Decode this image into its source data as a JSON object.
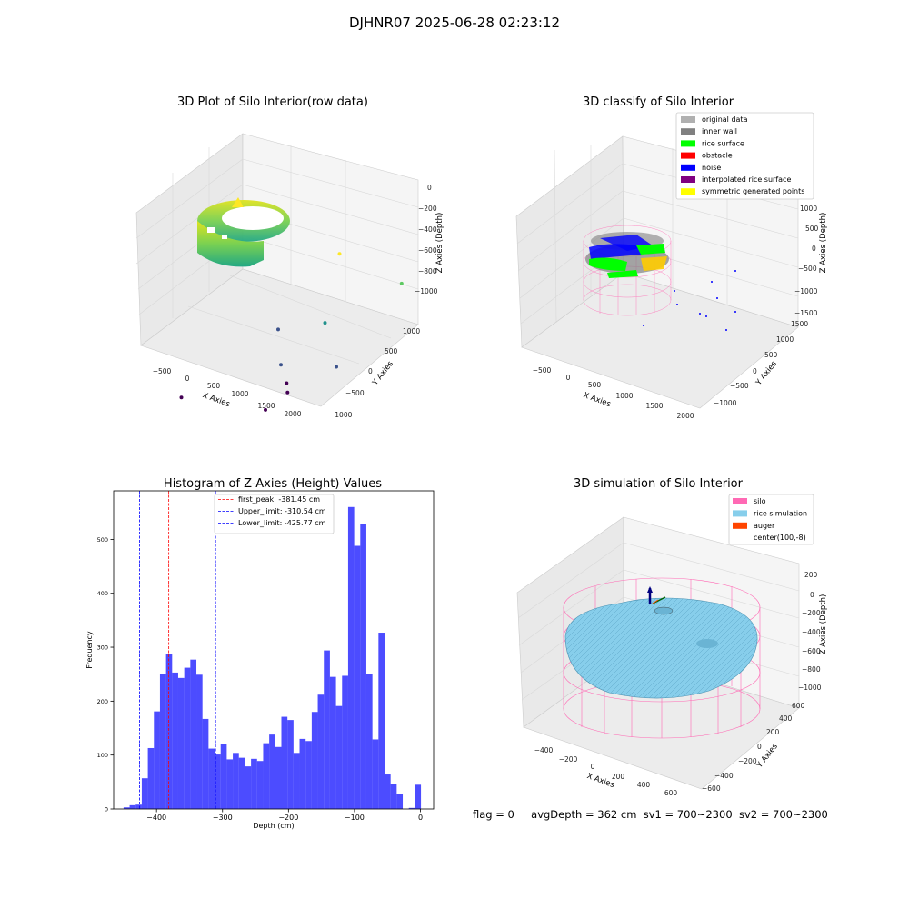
{
  "figure": {
    "title": "DJHNR07 2025-06-28 02:23:12",
    "footer": {
      "flag": "flag = 0",
      "avg_depth": "avgDepth = 362 cm",
      "sv1": "sv1 = 700~2300",
      "sv2": "sv2 = 700~2300"
    }
  },
  "chart_data": [
    {
      "type": "scatter",
      "title": "3D Plot of Silo Interior(row data)",
      "xlabel": "X Axies",
      "ylabel": "Y Axies",
      "zlabel": "Z Axies (Depth)",
      "xticks": [
        "−500",
        "0",
        "500",
        "1000",
        "1500",
        "2000"
      ],
      "yticks": [
        "−1000",
        "−500",
        "0",
        "500",
        "1000"
      ],
      "zticks": [
        "0",
        "−200",
        "−400",
        "−600",
        "−800",
        "−1000"
      ],
      "colormap": "viridis",
      "description_points": "dense ring of points near depth -100 to -400 plus sparse outliers",
      "outliers": [
        {
          "x": 900,
          "y": 800,
          "z": -700
        },
        {
          "x": 1550,
          "y": 800,
          "z": -750
        },
        {
          "x": 1200,
          "y": 300,
          "z": -900
        },
        {
          "x": 800,
          "y": 200,
          "z": -1000
        },
        {
          "x": 1100,
          "y": -100,
          "z": -1050
        },
        {
          "x": 1500,
          "y": 100,
          "z": -1050
        },
        {
          "x": 1250,
          "y": -200,
          "z": -1100
        },
        {
          "x": 1350,
          "y": -300,
          "z": -1100
        },
        {
          "x": 1300,
          "y": -500,
          "z": -1150
        },
        {
          "x": 600,
          "y": -700,
          "z": -1150
        }
      ]
    },
    {
      "type": "scatter",
      "title": "3D classify of Silo Interior",
      "xlabel": "X Axies",
      "ylabel": "Y Axies",
      "zlabel": "Z Axies (Depth)",
      "xticks": [
        "−500",
        "0",
        "500",
        "1000",
        "1500",
        "2000"
      ],
      "yticks": [
        "−1000",
        "−500",
        "0",
        "500",
        "1000",
        "1500"
      ],
      "zticks": [
        "1000",
        "500",
        "0",
        "−500",
        "−1000",
        "−1500"
      ],
      "legend_position": "upper right",
      "legend": [
        {
          "label": "original data",
          "color": "#b0b0b0"
        },
        {
          "label": "inner wall",
          "color": "#808080"
        },
        {
          "label": "rice surface",
          "color": "#00ff00"
        },
        {
          "label": "obstacle",
          "color": "#ff0000"
        },
        {
          "label": "noise",
          "color": "#0000ff"
        },
        {
          "label": "interpolated rice surface",
          "color": "#800080"
        },
        {
          "label": "symmetric generated points",
          "color": "#ffff00"
        }
      ]
    },
    {
      "type": "bar",
      "title": "Histogram of Z-Axies (Height) Values",
      "xlabel": "Depth (cm)",
      "ylabel": "Frequency",
      "xlim": [
        -465,
        20
      ],
      "ylim": [
        0,
        590
      ],
      "xticks": [
        -400,
        -300,
        -200,
        -100,
        0
      ],
      "xtick_labels": [
        "−400",
        "−300",
        "−200",
        "−100",
        "0"
      ],
      "yticks": [
        0,
        100,
        200,
        300,
        400,
        500
      ],
      "bar_color": "#0000ff",
      "bin_width": 9.2,
      "bins_start": -450,
      "values": [
        3,
        7,
        8,
        57,
        113,
        181,
        250,
        287,
        253,
        243,
        262,
        277,
        249,
        167,
        112,
        101,
        120,
        92,
        104,
        95,
        79,
        93,
        89,
        122,
        138,
        115,
        171,
        165,
        104,
        130,
        126,
        180,
        212,
        294,
        245,
        191,
        247,
        560,
        488,
        529,
        250,
        129,
        327,
        64,
        46,
        28,
        0,
        2,
        45
      ],
      "lines": [
        {
          "label": "first_peak: -381.45 cm",
          "value": -381.45,
          "color": "#ff0000"
        },
        {
          "label": "Upper_limit: -310.54 cm",
          "value": -310.54,
          "color": "#0000ff"
        },
        {
          "label": "Lower_limit: -425.77 cm",
          "value": -425.77,
          "color": "#0000ff"
        }
      ],
      "legend_position": "upper center"
    },
    {
      "type": "area",
      "title": "3D simulation of Silo Interior",
      "xlabel": "X Axies",
      "ylabel": "Y Axies",
      "zlabel": "Z Axies (Depth)",
      "xticks": [
        "−400",
        "−200",
        "0",
        "200",
        "400",
        "600"
      ],
      "yticks": [
        "−600",
        "−400",
        "−200",
        "0",
        "200",
        "400",
        "600"
      ],
      "zticks": [
        "200",
        "0",
        "−200",
        "−400",
        "−600",
        "−800",
        "−1000"
      ],
      "legend_position": "upper right",
      "legend": [
        {
          "label": "silo",
          "color": "#ff69b4"
        },
        {
          "label": "rice simulation",
          "color": "#87ceeb"
        },
        {
          "label": "auger",
          "color": "#ff4500"
        },
        {
          "label": "center(100,-8)",
          "color": "#ffffff"
        }
      ]
    }
  ]
}
